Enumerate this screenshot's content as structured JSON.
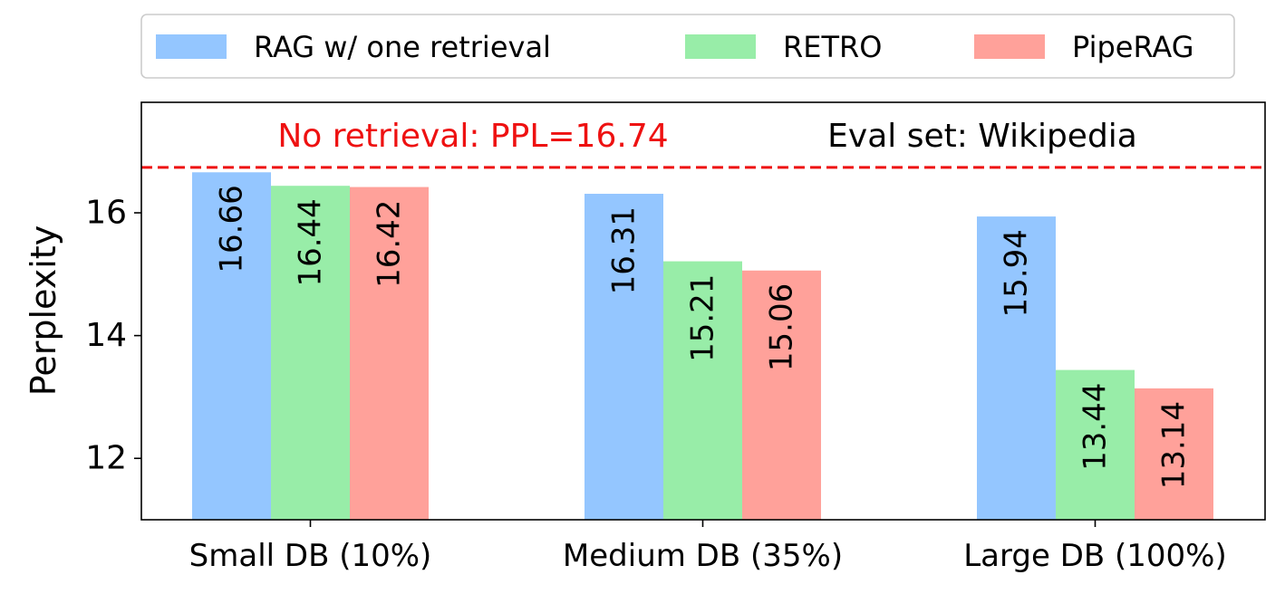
{
  "chart_data": {
    "type": "bar",
    "title": "",
    "xlabel": "",
    "ylabel": "Perplexity",
    "categories": [
      "Small DB (10%)",
      "Medium DB (35%)",
      "Large DB (100%)"
    ],
    "series": [
      {
        "name": "RAG w/ one retrieval",
        "color": "#94c6ff",
        "values": [
          16.66,
          16.31,
          15.94
        ],
        "labels": [
          "16.66",
          "16.31",
          "15.94"
        ]
      },
      {
        "name": "RETRO",
        "color": "#98eda8",
        "values": [
          16.44,
          15.21,
          13.44
        ],
        "labels": [
          "16.44",
          "15.21",
          "13.44"
        ]
      },
      {
        "name": "PipeRAG",
        "color": "#ffa19a",
        "values": [
          16.42,
          15.06,
          13.14
        ],
        "labels": [
          "16.42",
          "15.06",
          "13.14"
        ]
      }
    ],
    "ylim": [
      11,
      17.8
    ],
    "yticks": [
      12,
      14,
      16
    ],
    "ytick_labels": [
      "12",
      "14",
      "16"
    ],
    "reference_line": {
      "value": 16.74,
      "color": "#ee1111",
      "style": "dashed"
    },
    "annotations": {
      "no_retrieval": {
        "text": "No retrieval: PPL=16.74",
        "color": "#ee1111"
      },
      "eval_set": {
        "text": "Eval set: Wikipedia",
        "color": "#000000"
      }
    },
    "legend_position": "top-center",
    "grid": false
  }
}
